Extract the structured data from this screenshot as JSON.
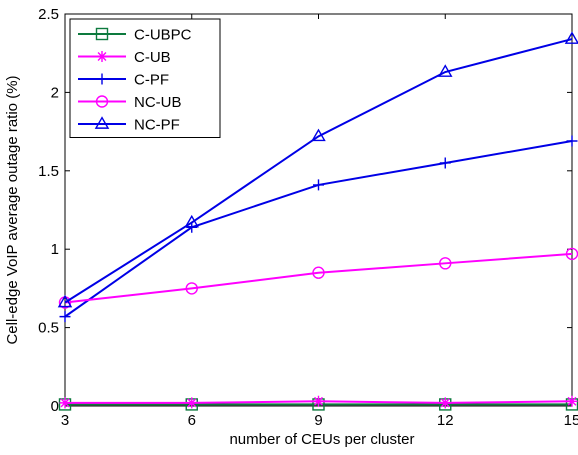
{
  "chart_data": {
    "type": "line",
    "title": "",
    "xlabel": "number of CEUs per cluster",
    "ylabel": "Cell-edge VoIP average outage ratio (%)",
    "x": [
      3,
      6,
      9,
      12,
      15
    ],
    "x_ticks": [
      3,
      6,
      9,
      12,
      15
    ],
    "y_ticks": [
      0,
      0.5,
      1,
      1.5,
      2,
      2.5
    ],
    "xlim": [
      3,
      15
    ],
    "ylim": [
      0,
      2.5
    ],
    "grid": false,
    "legend_position": "top-left",
    "series": [
      {
        "name": "C-UBPC",
        "color": "#0d7a3e",
        "marker": "square",
        "values": [
          0.01,
          0.01,
          0.01,
          0.01,
          0.01
        ]
      },
      {
        "name": "C-UB",
        "color": "#ff00ff",
        "marker": "asterisk",
        "values": [
          0.02,
          0.02,
          0.03,
          0.02,
          0.03
        ]
      },
      {
        "name": "C-PF",
        "color": "#0000e6",
        "marker": "plus",
        "values": [
          0.57,
          1.14,
          1.41,
          1.55,
          1.69
        ]
      },
      {
        "name": "NC-UB",
        "color": "#ff00ff",
        "marker": "circle",
        "values": [
          0.66,
          0.75,
          0.85,
          0.91,
          0.97
        ]
      },
      {
        "name": "NC-PF",
        "color": "#0000e6",
        "marker": "triangle",
        "values": [
          0.66,
          1.17,
          1.72,
          2.13,
          2.34
        ]
      }
    ]
  }
}
